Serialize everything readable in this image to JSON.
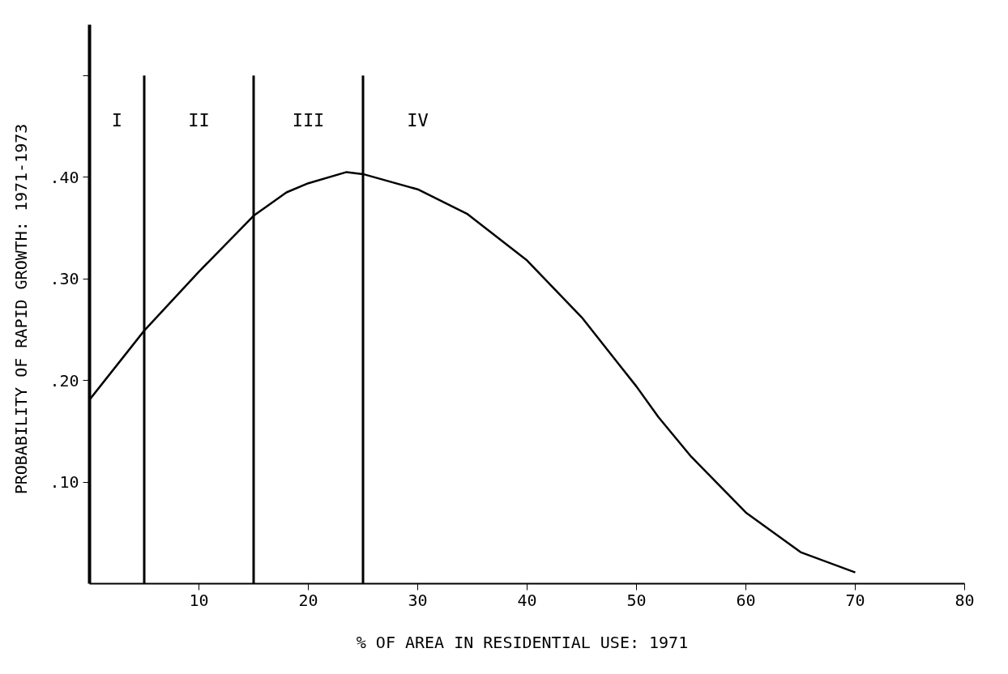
{
  "chart_data": {
    "type": "line",
    "xlabel": "% OF AREA IN RESIDENTIAL USE:  1971",
    "ylabel": "PROBABILITY OF RAPID GROWTH:  1971-1973",
    "x": [
      0,
      5,
      10,
      15,
      18,
      20,
      23.5,
      25,
      30,
      34.5,
      40,
      45,
      50,
      52,
      55,
      60,
      65,
      70
    ],
    "series": [
      {
        "color": "#000000",
        "values": [
          0.181,
          0.249,
          0.307,
          0.362,
          0.385,
          0.394,
          0.405,
          0.403,
          0.388,
          0.364,
          0.318,
          0.262,
          0.194,
          0.164,
          0.125,
          0.07,
          0.031,
          0.011
        ]
      }
    ],
    "xlim": [
      0,
      80
    ],
    "xticks": [
      10,
      20,
      30,
      40,
      50,
      60,
      70,
      80
    ],
    "ylim": [
      0,
      0.55
    ],
    "yticks": [
      {
        "value": 0.1,
        "label": ".10"
      },
      {
        "value": 0.2,
        "label": ".20"
      },
      {
        "value": 0.3,
        "label": ".30"
      },
      {
        "value": 0.4,
        "label": ".40"
      },
      {
        "value": 0.5,
        "label": null
      }
    ],
    "ref_lines": [
      {
        "axis": "x",
        "value": 5,
        "label": null,
        "color": "#000000"
      },
      {
        "axis": "x",
        "value": 15,
        "label": null,
        "color": "#000000"
      },
      {
        "axis": "x",
        "value": 25,
        "label": null,
        "color": "#000000"
      }
    ],
    "annotations": [
      "I",
      "II",
      "III",
      "IV"
    ],
    "grid": false,
    "marker": "none",
    "line_style": "solid"
  }
}
